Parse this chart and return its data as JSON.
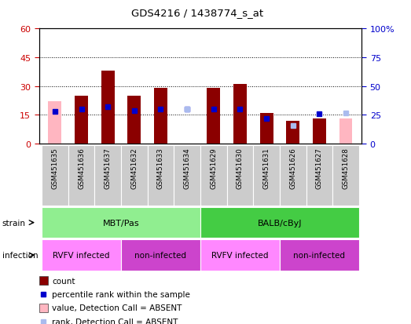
{
  "title": "GDS4216 / 1438774_s_at",
  "samples": [
    "GSM451635",
    "GSM451636",
    "GSM451637",
    "GSM451632",
    "GSM451633",
    "GSM451634",
    "GSM451629",
    "GSM451630",
    "GSM451631",
    "GSM451626",
    "GSM451627",
    "GSM451628"
  ],
  "count_values": [
    null,
    25,
    38,
    25,
    29,
    null,
    29,
    31,
    16,
    12,
    13,
    null
  ],
  "count_absent": [
    22,
    null,
    null,
    null,
    null,
    null,
    null,
    null,
    null,
    null,
    null,
    13
  ],
  "percentile_values": [
    28,
    30,
    32,
    29,
    30,
    30,
    30,
    30,
    22,
    null,
    26,
    null
  ],
  "percentile_absent": [
    null,
    null,
    null,
    null,
    null,
    30,
    null,
    null,
    null,
    16,
    null,
    27
  ],
  "strain_groups": [
    {
      "label": "MBT/Pas",
      "start": 0,
      "end": 5,
      "color": "#90EE90"
    },
    {
      "label": "BALB/cByJ",
      "start": 6,
      "end": 11,
      "color": "#44CC44"
    }
  ],
  "infection_groups": [
    {
      "label": "RVFV infected",
      "start": 0,
      "end": 2,
      "color": "#FF88FF"
    },
    {
      "label": "non-infected",
      "start": 3,
      "end": 5,
      "color": "#CC44CC"
    },
    {
      "label": "RVFV infected",
      "start": 6,
      "end": 8,
      "color": "#FF88FF"
    },
    {
      "label": "non-infected",
      "start": 9,
      "end": 11,
      "color": "#CC44CC"
    }
  ],
  "ylim_left": [
    0,
    60
  ],
  "ylim_right": [
    0,
    100
  ],
  "yticks_left": [
    0,
    15,
    30,
    45,
    60
  ],
  "yticks_right": [
    0,
    25,
    50,
    75,
    100
  ],
  "bar_color": "#8B0000",
  "bar_absent_color": "#FFB6C1",
  "dot_color": "#0000CC",
  "dot_absent_color": "#AABBEE",
  "bar_width": 0.5,
  "background_color": "#FFFFFF",
  "grid_color": "#000000",
  "tick_color_left": "#CC0000",
  "tick_color_right": "#0000CC",
  "legend_items": [
    {
      "label": "count",
      "type": "bar",
      "color": "#8B0000"
    },
    {
      "label": "percentile rank within the sample",
      "type": "dot",
      "color": "#0000CC"
    },
    {
      "label": "value, Detection Call = ABSENT",
      "type": "bar",
      "color": "#FFB6C1"
    },
    {
      "label": "rank, Detection Call = ABSENT",
      "type": "dot",
      "color": "#AABBEE"
    }
  ]
}
